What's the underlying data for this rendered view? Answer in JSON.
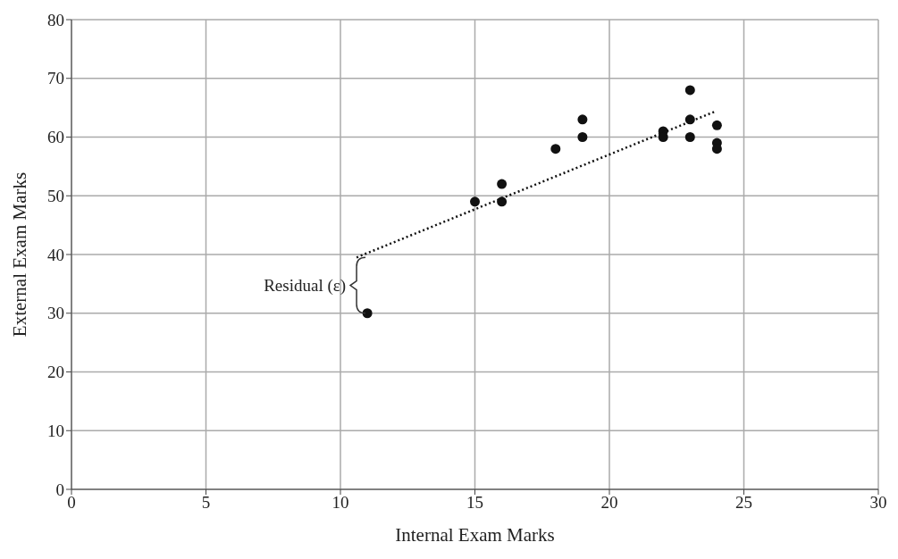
{
  "chart_data": {
    "type": "scatter",
    "xlabel": "Internal Exam Marks",
    "ylabel": "External Exam Marks",
    "xlim": [
      0,
      30
    ],
    "xticks": [
      0,
      5,
      10,
      15,
      20,
      25,
      30
    ],
    "ylim": [
      0,
      80
    ],
    "yticks": [
      0,
      10,
      20,
      30,
      40,
      50,
      60,
      70,
      80
    ],
    "grid": true,
    "marker": "circle",
    "series": [
      {
        "color": "#111111",
        "x": [
          11,
          15,
          16,
          16,
          18,
          19,
          19,
          22,
          22,
          23,
          23,
          23,
          24,
          24,
          24
        ],
        "values": [
          30,
          49,
          52,
          49,
          58,
          63,
          60,
          61,
          60,
          68,
          63,
          60,
          62,
          59,
          58
        ]
      },
      {
        "type": "line",
        "color": "#111111",
        "line_style": "dotted",
        "marker": "none",
        "x": [
          10.6,
          23.9
        ],
        "values": [
          39.5,
          64.3
        ]
      }
    ],
    "annotations": [
      "Residual (ε)"
    ]
  }
}
